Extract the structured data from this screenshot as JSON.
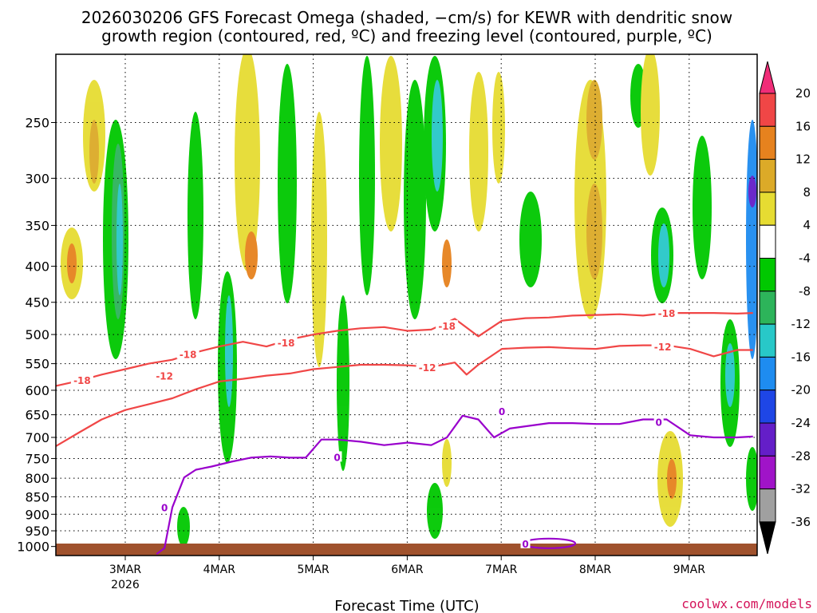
{
  "chart_data": {
    "type": "heatmap",
    "title_line1": "2026030206 GFS Forecast Omega (shaded, −cm/s) for KEWR with dendritic snow",
    "title_line2": "growth region (contoured, red, ºC) and freezing level (contoured, purple, ºC)",
    "xlabel": "Forecast Time (UTC)",
    "ylabel": "",
    "credit": "coolwx.com/models",
    "x_ticks": [
      "3MAR",
      "4MAR",
      "5MAR",
      "6MAR",
      "7MAR",
      "8MAR",
      "9MAR"
    ],
    "x_tick_year": "2026",
    "x_range_hours": [
      0,
      180
    ],
    "y_ticks": [
      250,
      300,
      350,
      400,
      450,
      500,
      550,
      600,
      650,
      700,
      750,
      800,
      850,
      900,
      950,
      1000
    ],
    "y_range_hPa": [
      200,
      1030
    ],
    "grid": "dotted",
    "colorbar": {
      "levels": [
        20,
        16,
        12,
        8,
        4,
        -4,
        -8,
        -12,
        -16,
        -20,
        -24,
        -28,
        -32,
        -36
      ],
      "colors": [
        "#f02d78",
        "#f04646",
        "#e6821e",
        "#dcaa28",
        "#e6dc32",
        "#ffffff",
        "#00c800",
        "#2db45a",
        "#28c8c8",
        "#1e8cf0",
        "#1e46e6",
        "#641ec8",
        "#a014c8",
        "#a0a0a0",
        "#000000"
      ]
    },
    "series": [
      {
        "name": "-18",
        "color": "#f04646",
        "x": [
          0,
          6,
          12,
          18,
          24,
          30,
          36,
          42,
          48,
          54,
          60,
          66,
          72,
          78,
          84,
          90,
          96,
          102,
          108,
          114,
          120,
          126,
          132,
          138,
          144,
          150,
          156,
          162,
          168,
          174,
          178
        ],
        "y": [
          592,
          582,
          570,
          560,
          550,
          543,
          530,
          520,
          512,
          520,
          508,
          500,
          494,
          490,
          488,
          494,
          492,
          475,
          503,
          478,
          474,
          473,
          470,
          469,
          468,
          470,
          466,
          466,
          466,
          467,
          466
        ]
      },
      {
        "name": "-12",
        "color": "#f04646",
        "x": [
          0,
          6,
          12,
          18,
          24,
          30,
          36,
          42,
          48,
          54,
          60,
          66,
          72,
          78,
          84,
          90,
          96,
          102,
          105,
          108,
          114,
          120,
          126,
          132,
          138,
          144,
          150,
          156,
          162,
          168,
          174,
          178
        ],
        "y": [
          722,
          690,
          660,
          640,
          628,
          616,
          598,
          583,
          578,
          572,
          568,
          560,
          556,
          552,
          552,
          553,
          556,
          548,
          570,
          552,
          524,
          522,
          521,
          523,
          524,
          519,
          518,
          518,
          524,
          537,
          526,
          526
        ]
      },
      {
        "name": "0",
        "color": "#9900cc",
        "x": [
          26,
          28,
          30,
          33,
          36,
          40,
          45,
          50,
          55,
          60,
          64,
          68,
          72,
          78,
          84,
          90,
          96,
          100,
          104,
          108,
          112,
          116,
          120,
          126,
          132,
          138,
          144,
          150,
          156,
          162,
          168,
          174,
          178
        ],
        "y": [
          1025,
          1005,
          880,
          798,
          778,
          770,
          758,
          748,
          745,
          748,
          748,
          705,
          705,
          710,
          718,
          712,
          718,
          700,
          652,
          660,
          700,
          680,
          675,
          668,
          668,
          670,
          670,
          660,
          660,
          695,
          700,
          700,
          698
        ]
      }
    ],
    "contour_labels": [
      {
        "text": "-18",
        "x": 7,
        "p": 580,
        "color": "#f04646"
      },
      {
        "text": "-18",
        "x": 34,
        "p": 533,
        "color": "#f04646"
      },
      {
        "text": "-18",
        "x": 59,
        "p": 513,
        "color": "#f04646"
      },
      {
        "text": "-18",
        "x": 100,
        "p": 486,
        "color": "#f04646"
      },
      {
        "text": "-18",
        "x": 156,
        "p": 466,
        "color": "#f04646"
      },
      {
        "text": "-12",
        "x": 28,
        "p": 572,
        "color": "#f04646"
      },
      {
        "text": "-12",
        "x": 95,
        "p": 556,
        "color": "#f04646"
      },
      {
        "text": "-12",
        "x": 155,
        "p": 520,
        "color": "#f04646"
      },
      {
        "text": "0",
        "x": 28,
        "p": 880,
        "color": "#9900cc"
      },
      {
        "text": "0",
        "x": 72,
        "p": 746,
        "color": "#9900cc"
      },
      {
        "text": "0",
        "x": 114,
        "p": 642,
        "color": "#9900cc"
      },
      {
        "text": "0",
        "x": 120,
        "p": 990,
        "color": "#9900cc"
      },
      {
        "text": "0",
        "x": 154,
        "p": 665,
        "color": "#9900cc"
      }
    ]
  }
}
